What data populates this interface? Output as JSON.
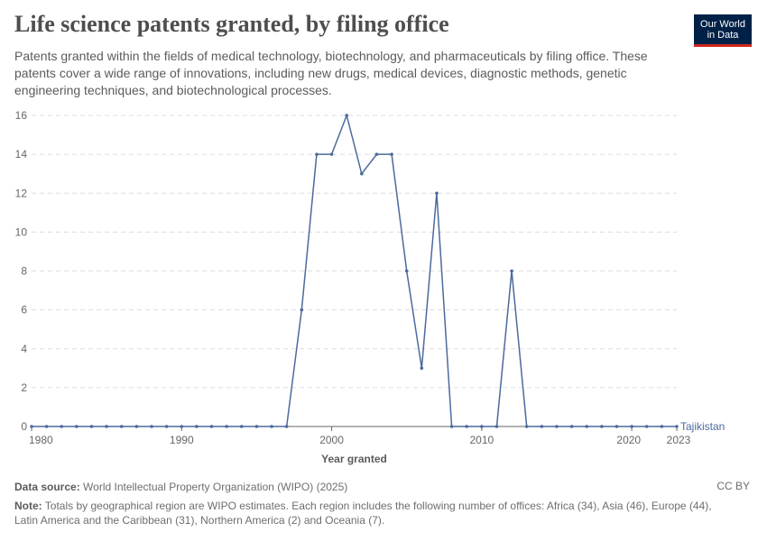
{
  "header": {
    "title": "Life science patents granted, by filing office",
    "subtitle": "Patents granted within the fields of medical technology, biotechnology, and pharmaceuticals by filing office. These patents cover a wide range of innovations, including new drugs, medical devices, diagnostic methods, genetic engineering techniques, and biotechnological processes.",
    "logo_line1": "Our World",
    "logo_line2": "in Data"
  },
  "footer": {
    "source_label": "Data source:",
    "source_text": "World Intellectual Property Organization (WIPO) (2025)",
    "license": "CC BY",
    "note_label": "Note:",
    "note_text": "Totals by geographical region are WIPO estimates. Each region includes the following number of offices: Africa (34), Asia (46), Europe (44), Latin America and the Caribbean (31), Northern America (2) and Oceania (7)."
  },
  "colors": {
    "series": "#4c6a9c",
    "grid": "#dddddd",
    "axis": "#666666",
    "text": "#666666"
  },
  "chart_data": {
    "type": "line",
    "title": "Life science patents granted, by filing office",
    "xlabel": "Year granted",
    "ylabel": "",
    "xlim": [
      1980,
      2023
    ],
    "ylim": [
      0,
      16
    ],
    "x_ticks": [
      1980,
      1990,
      2000,
      2010,
      2020,
      2023
    ],
    "y_ticks": [
      0,
      2,
      4,
      6,
      8,
      10,
      12,
      14,
      16
    ],
    "grid": true,
    "series": [
      {
        "name": "Tajikistan",
        "x": [
          1980,
          1981,
          1982,
          1983,
          1984,
          1985,
          1986,
          1987,
          1988,
          1989,
          1990,
          1991,
          1992,
          1993,
          1994,
          1995,
          1996,
          1997,
          1998,
          1999,
          2000,
          2001,
          2002,
          2003,
          2004,
          2005,
          2006,
          2007,
          2008,
          2009,
          2010,
          2011,
          2012,
          2013,
          2014,
          2015,
          2016,
          2017,
          2018,
          2019,
          2020,
          2021,
          2022,
          2023
        ],
        "values": [
          0,
          0,
          0,
          0,
          0,
          0,
          0,
          0,
          0,
          0,
          0,
          0,
          0,
          0,
          0,
          0,
          0,
          0,
          6,
          14,
          14,
          16,
          13,
          14,
          14,
          8,
          3,
          12,
          0,
          0,
          0,
          0,
          8,
          0,
          0,
          0,
          0,
          0,
          0,
          0,
          0,
          0,
          0,
          0
        ]
      }
    ]
  }
}
